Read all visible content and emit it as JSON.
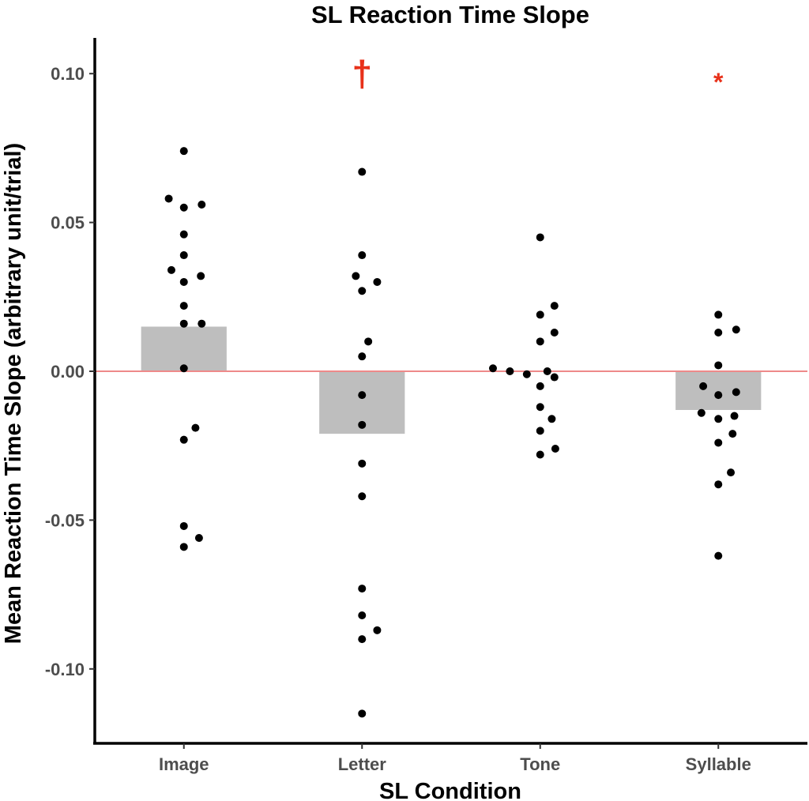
{
  "chart_data": {
    "type": "bar",
    "title": "SL Reaction Time Slope",
    "xlabel": "SL Condition",
    "ylabel": "Mean Reaction Time Slope (arbitrary unit/trial)",
    "categories": [
      "Image",
      "Letter",
      "Tone",
      "Syllable"
    ],
    "values": [
      0.015,
      -0.021,
      0.0,
      -0.013
    ],
    "ylim": [
      -0.125,
      0.112
    ],
    "yticks": [
      0.1,
      0.05,
      0.0,
      -0.05,
      -0.1
    ],
    "ytick_labels": [
      "0.10",
      "0.05",
      "0.00",
      "-0.05",
      "-0.10"
    ],
    "reference_line": {
      "y": 0.0,
      "color": "#ee8a8a"
    },
    "bar_color": "#bebebe",
    "point_color": "#000000",
    "significance": [
      {
        "category": "Letter",
        "label": "†",
        "color": "#e8311a"
      },
      {
        "category": "Syllable",
        "label": "*",
        "color": "#e8311a"
      }
    ],
    "points": [
      [
        {
          "dx": 0.0,
          "y": 0.074
        },
        {
          "dx": -0.17,
          "y": 0.058
        },
        {
          "dx": 0.0,
          "y": 0.055
        },
        {
          "dx": 0.2,
          "y": 0.056
        },
        {
          "dx": 0.0,
          "y": 0.046
        },
        {
          "dx": 0.0,
          "y": 0.039
        },
        {
          "dx": -0.14,
          "y": 0.034
        },
        {
          "dx": 0.0,
          "y": 0.03
        },
        {
          "dx": 0.19,
          "y": 0.032
        },
        {
          "dx": 0.0,
          "y": 0.022
        },
        {
          "dx": 0.0,
          "y": 0.016
        },
        {
          "dx": 0.2,
          "y": 0.016
        },
        {
          "dx": 0.0,
          "y": 0.001
        },
        {
          "dx": 0.13,
          "y": -0.019
        },
        {
          "dx": 0.0,
          "y": -0.023
        },
        {
          "dx": 0.0,
          "y": -0.052
        },
        {
          "dx": 0.17,
          "y": -0.056
        },
        {
          "dx": 0.0,
          "y": -0.059
        }
      ],
      [
        {
          "dx": 0.0,
          "y": 0.067
        },
        {
          "dx": 0.0,
          "y": 0.039
        },
        {
          "dx": -0.07,
          "y": 0.032
        },
        {
          "dx": 0.17,
          "y": 0.03
        },
        {
          "dx": 0.0,
          "y": 0.027
        },
        {
          "dx": 0.07,
          "y": 0.01
        },
        {
          "dx": 0.0,
          "y": 0.005
        },
        {
          "dx": 0.0,
          "y": -0.008
        },
        {
          "dx": 0.0,
          "y": -0.018
        },
        {
          "dx": 0.0,
          "y": -0.031
        },
        {
          "dx": 0.0,
          "y": -0.042
        },
        {
          "dx": 0.0,
          "y": -0.073
        },
        {
          "dx": 0.0,
          "y": -0.082
        },
        {
          "dx": 0.17,
          "y": -0.087
        },
        {
          "dx": 0.0,
          "y": -0.09
        },
        {
          "dx": 0.0,
          "y": -0.115
        }
      ],
      [
        {
          "dx": 0.0,
          "y": 0.045
        },
        {
          "dx": 0.16,
          "y": 0.022
        },
        {
          "dx": 0.0,
          "y": 0.019
        },
        {
          "dx": 0.16,
          "y": 0.013
        },
        {
          "dx": 0.0,
          "y": 0.01
        },
        {
          "dx": -0.53,
          "y": 0.001
        },
        {
          "dx": -0.34,
          "y": 0.0
        },
        {
          "dx": -0.15,
          "y": -0.001
        },
        {
          "dx": 0.08,
          "y": 0.0
        },
        {
          "dx": 0.16,
          "y": -0.002
        },
        {
          "dx": 0.0,
          "y": -0.005
        },
        {
          "dx": 0.0,
          "y": -0.012
        },
        {
          "dx": 0.13,
          "y": -0.016
        },
        {
          "dx": 0.0,
          "y": -0.02
        },
        {
          "dx": 0.17,
          "y": -0.026
        },
        {
          "dx": 0.0,
          "y": -0.028
        }
      ],
      [
        {
          "dx": 0.0,
          "y": 0.019
        },
        {
          "dx": 0.2,
          "y": 0.014
        },
        {
          "dx": 0.0,
          "y": 0.013
        },
        {
          "dx": 0.0,
          "y": 0.002
        },
        {
          "dx": -0.17,
          "y": -0.005
        },
        {
          "dx": 0.0,
          "y": -0.008
        },
        {
          "dx": 0.2,
          "y": -0.007
        },
        {
          "dx": -0.19,
          "y": -0.014
        },
        {
          "dx": 0.0,
          "y": -0.016
        },
        {
          "dx": 0.18,
          "y": -0.015
        },
        {
          "dx": 0.16,
          "y": -0.021
        },
        {
          "dx": 0.0,
          "y": -0.024
        },
        {
          "dx": 0.14,
          "y": -0.034
        },
        {
          "dx": 0.0,
          "y": -0.038
        },
        {
          "dx": 0.0,
          "y": -0.062
        }
      ]
    ]
  }
}
